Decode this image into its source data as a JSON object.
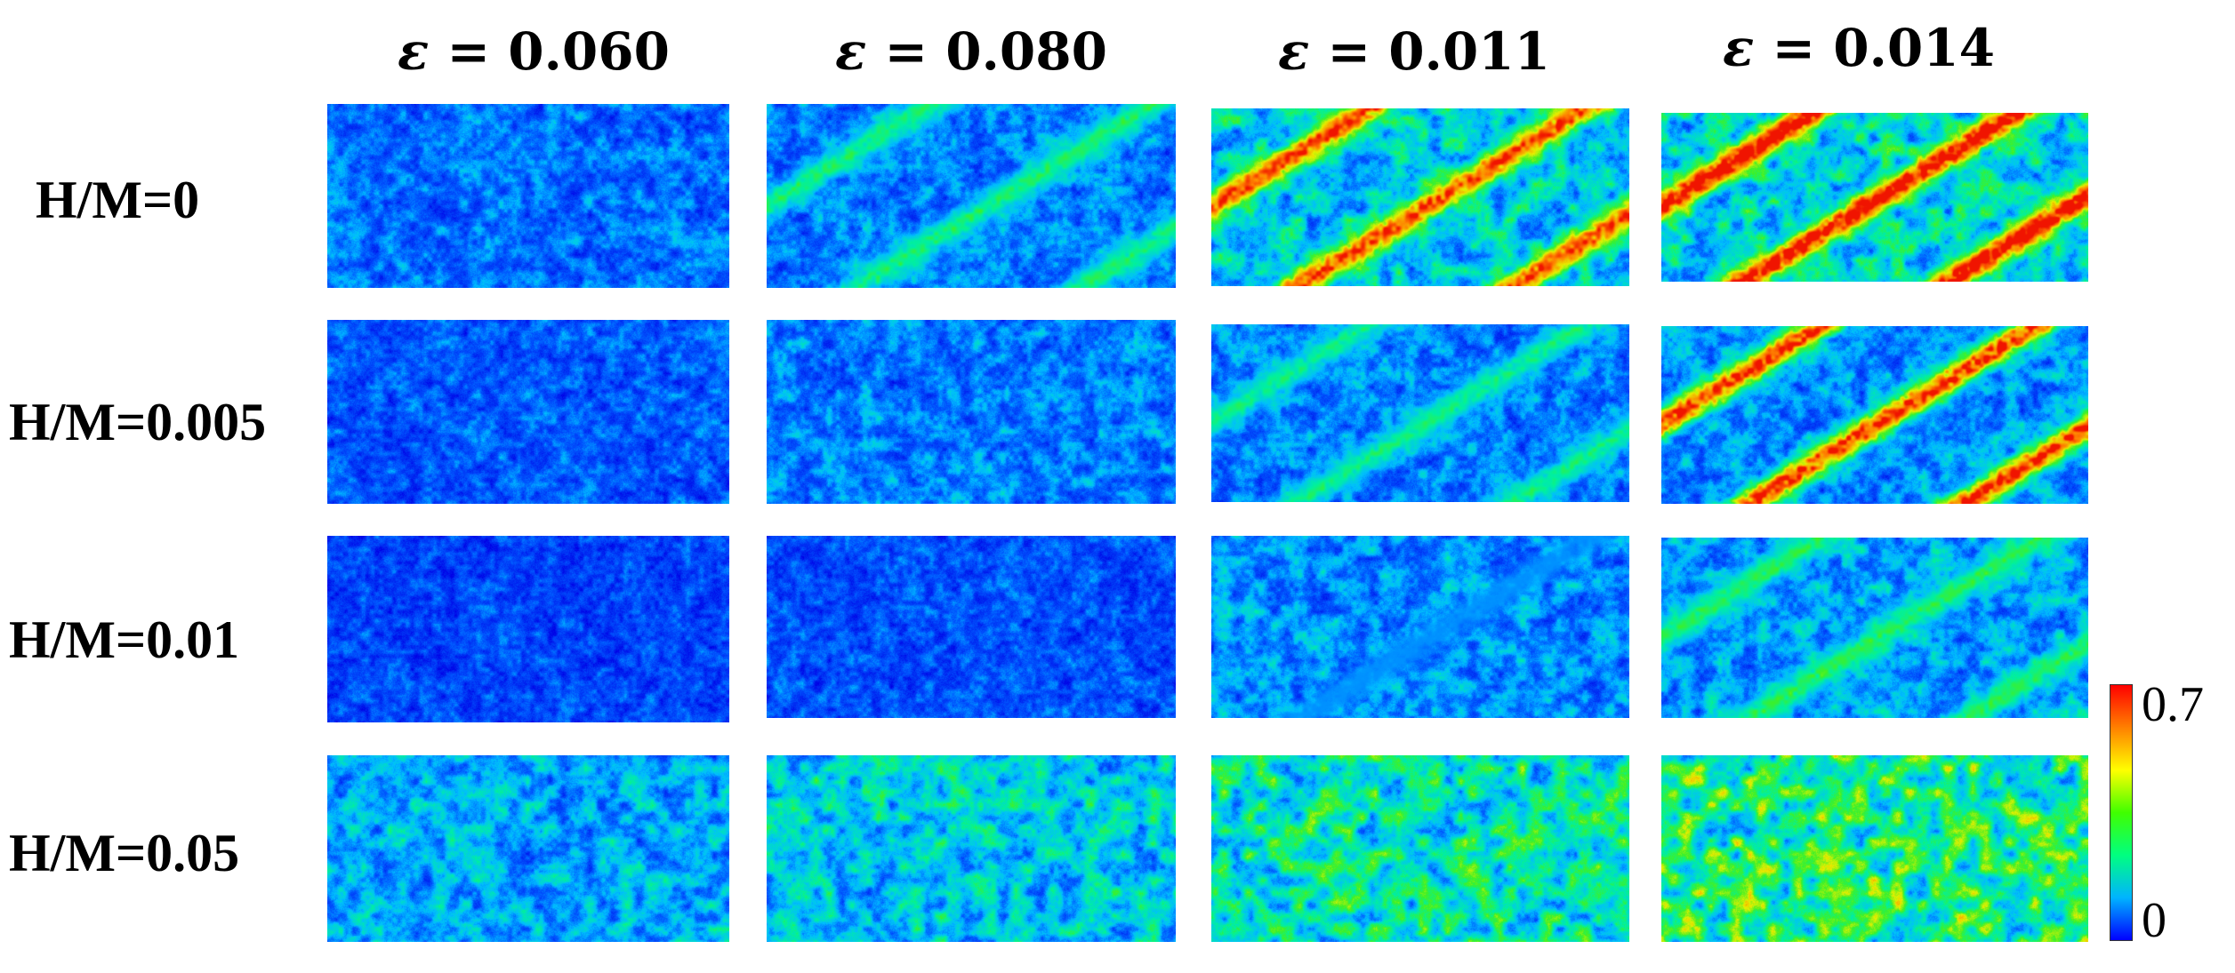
{
  "figure": {
    "columns": [
      {
        "symbol": "ε",
        "value": "= 0.060"
      },
      {
        "symbol": "ε",
        "value": "= 0.080"
      },
      {
        "symbol": "ε",
        "value": "= 0.011"
      },
      {
        "symbol": "ε",
        "value": "= 0.014"
      }
    ],
    "rows": [
      {
        "label": "H/M=0"
      },
      {
        "label": "H/M=0.005"
      },
      {
        "label": "H/M=0.01"
      },
      {
        "label": "H/M=0.05"
      }
    ],
    "colorbar": {
      "max_label": "0.7",
      "min_label": "0",
      "colors": [
        "#0000ff",
        "#00b4ff",
        "#00ff80",
        "#40ff00",
        "#ffff00",
        "#ff8000",
        "#ff0000"
      ]
    },
    "panel_strain_maps": [
      [
        {
          "bands": 0,
          "peak": 0.0,
          "background": 0.18
        },
        {
          "bands": 2,
          "peak": 0.4,
          "background": 0.2
        },
        {
          "bands": 2,
          "peak": 0.75,
          "background": 0.3
        },
        {
          "bands": 2,
          "peak": 0.85,
          "background": 0.32
        }
      ],
      [
        {
          "bands": 0,
          "peak": 0.0,
          "background": 0.15
        },
        {
          "bands": 0,
          "peak": 0.0,
          "background": 0.2
        },
        {
          "bands": 2,
          "peak": 0.38,
          "background": 0.2
        },
        {
          "bands": 2,
          "peak": 0.78,
          "background": 0.22
        }
      ],
      [
        {
          "bands": 0,
          "peak": 0.0,
          "background": 0.12
        },
        {
          "bands": 0,
          "peak": 0.0,
          "background": 0.14
        },
        {
          "bands": 1,
          "peak": 0.2,
          "background": 0.22
        },
        {
          "bands": 2,
          "peak": 0.42,
          "background": 0.24
        }
      ],
      [
        {
          "bands": 0,
          "peak": 0.0,
          "background": 0.25
        },
        {
          "bands": 0,
          "peak": 0.0,
          "background": 0.3
        },
        {
          "bands": 0,
          "peak": 0.0,
          "background": 0.36
        },
        {
          "bands": 0,
          "peak": 0.0,
          "background": 0.42
        }
      ]
    ]
  }
}
